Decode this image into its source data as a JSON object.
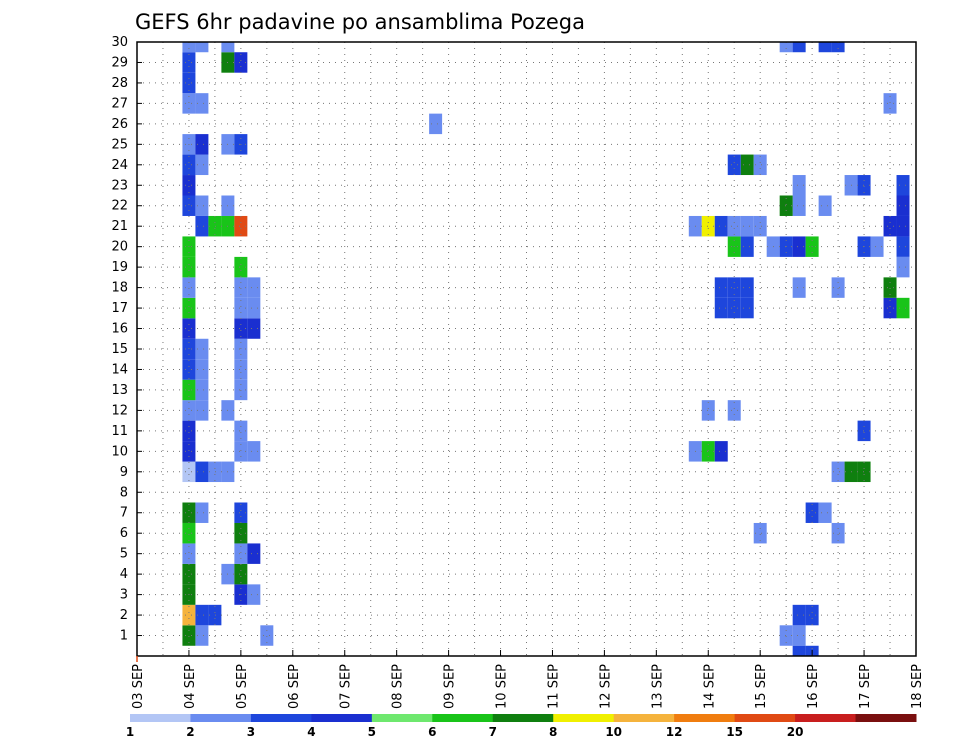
{
  "chart_data": {
    "type": "heatmap",
    "title": "GEFS 6hr padavine po ansamblima Pozega",
    "xlabel": "",
    "ylabel": "",
    "x_tick_labels": [
      "03 SEP",
      "04 SEP",
      "05 SEP",
      "06 SEP",
      "07 SEP",
      "08 SEP",
      "09 SEP",
      "10 SEP",
      "11 SEP",
      "12 SEP",
      "13 SEP",
      "14 SEP",
      "15 SEP",
      "16 SEP",
      "17 SEP",
      "18 SEP"
    ],
    "y_tick_labels": [
      "1",
      "2",
      "3",
      "4",
      "5",
      "6",
      "7",
      "8",
      "9",
      "10",
      "11",
      "12",
      "13",
      "14",
      "15",
      "16",
      "17",
      "18",
      "19",
      "20",
      "21",
      "22",
      "23",
      "24",
      "25",
      "26",
      "27",
      "28",
      "29",
      "30"
    ],
    "x_range_days": [
      3,
      18
    ],
    "y_range": [
      0,
      30
    ],
    "grid": true,
    "colorbar": {
      "levels": [
        "1",
        "2",
        "3",
        "4",
        "5",
        "6",
        "7",
        "8",
        "10",
        "12",
        "15",
        "20"
      ],
      "colors": [
        "#b3c6f5",
        "#6a8cf0",
        "#1e46dc",
        "#1a2fd0",
        "#6ee86e",
        "#19c419",
        "#0f7f0f",
        "#f0f000",
        "#f5b33c",
        "#f07d0f",
        "#e04a14",
        "#c81e1e",
        "#7a0f0f"
      ]
    },
    "cells": [
      [
        4.0,
        1,
        6
      ],
      [
        4.0,
        2,
        8
      ],
      [
        4.0,
        3,
        6
      ],
      [
        4.0,
        4,
        6
      ],
      [
        4.0,
        5,
        1
      ],
      [
        4.0,
        6,
        5
      ],
      [
        4.0,
        7,
        6
      ],
      [
        4.25,
        1,
        1
      ],
      [
        4.25,
        2,
        2
      ],
      [
        4.5,
        2,
        2
      ],
      [
        4.0,
        9,
        0
      ],
      [
        4.25,
        9,
        2
      ],
      [
        4.5,
        9,
        1
      ],
      [
        4.75,
        9,
        1
      ],
      [
        4.0,
        10,
        3
      ],
      [
        4.0,
        11,
        3
      ],
      [
        4.0,
        12,
        1
      ],
      [
        4.25,
        12,
        1
      ],
      [
        4.0,
        13,
        5
      ],
      [
        4.25,
        13,
        1
      ],
      [
        4.0,
        14,
        2
      ],
      [
        4.25,
        14,
        1
      ],
      [
        4.0,
        15,
        2
      ],
      [
        4.25,
        15,
        1
      ],
      [
        4.0,
        16,
        3
      ],
      [
        4.0,
        17,
        5
      ],
      [
        4.0,
        18,
        1
      ],
      [
        4.0,
        19,
        5
      ],
      [
        4.0,
        20,
        5
      ],
      [
        4.25,
        21,
        2
      ],
      [
        4.5,
        21,
        5
      ],
      [
        4.75,
        21,
        5
      ],
      [
        5.0,
        21,
        10
      ],
      [
        4.0,
        22,
        2
      ],
      [
        4.25,
        22,
        1
      ],
      [
        4.75,
        22,
        1
      ],
      [
        4.0,
        23,
        3
      ],
      [
        4.0,
        24,
        2
      ],
      [
        4.25,
        24,
        1
      ],
      [
        4.0,
        25,
        1
      ],
      [
        4.25,
        25,
        3
      ],
      [
        4.75,
        25,
        1
      ],
      [
        5.0,
        25,
        2
      ],
      [
        4.0,
        27,
        1
      ],
      [
        4.25,
        27,
        1
      ],
      [
        4.0,
        28,
        2
      ],
      [
        4.0,
        29,
        2
      ],
      [
        4.75,
        29,
        6
      ],
      [
        5.0,
        29,
        3
      ],
      [
        4.0,
        30,
        1
      ],
      [
        4.25,
        30,
        1
      ],
      [
        4.75,
        30,
        1
      ],
      [
        4.25,
        7,
        1
      ],
      [
        5.0,
        7,
        2
      ],
      [
        4.75,
        12,
        1
      ],
      [
        4.75,
        4,
        1
      ],
      [
        5.0,
        3,
        3
      ],
      [
        5.25,
        3,
        1
      ],
      [
        5.0,
        4,
        6
      ],
      [
        5.0,
        5,
        1
      ],
      [
        5.25,
        5,
        3
      ],
      [
        5.0,
        6,
        6
      ],
      [
        5.0,
        10,
        1
      ],
      [
        5.25,
        10,
        1
      ],
      [
        5.0,
        11,
        1
      ],
      [
        5.0,
        13,
        1
      ],
      [
        5.0,
        14,
        1
      ],
      [
        5.0,
        15,
        1
      ],
      [
        5.0,
        16,
        3
      ],
      [
        5.25,
        16,
        3
      ],
      [
        5.0,
        17,
        1
      ],
      [
        5.25,
        17,
        1
      ],
      [
        5.0,
        18,
        1
      ],
      [
        5.25,
        18,
        1
      ],
      [
        5.0,
        19,
        5
      ],
      [
        5.5,
        1,
        1
      ],
      [
        8.75,
        26,
        1
      ],
      [
        13.75,
        10,
        1
      ],
      [
        14.0,
        10,
        5
      ],
      [
        14.25,
        10,
        3
      ],
      [
        14.0,
        12,
        1
      ],
      [
        14.5,
        12,
        1
      ],
      [
        14.25,
        17,
        2
      ],
      [
        14.5,
        17,
        2
      ],
      [
        14.75,
        17,
        2
      ],
      [
        14.25,
        18,
        2
      ],
      [
        14.5,
        18,
        2
      ],
      [
        14.75,
        18,
        2
      ],
      [
        14.5,
        20,
        5
      ],
      [
        14.75,
        20,
        2
      ],
      [
        14.75,
        24,
        6
      ],
      [
        14.5,
        24,
        2
      ],
      [
        15.0,
        24,
        1
      ],
      [
        13.75,
        21,
        1
      ],
      [
        14.0,
        21,
        7
      ],
      [
        14.25,
        21,
        2
      ],
      [
        14.5,
        21,
        1
      ],
      [
        14.75,
        21,
        1
      ],
      [
        15.0,
        21,
        1
      ],
      [
        15.0,
        6,
        1
      ],
      [
        15.25,
        20,
        1
      ],
      [
        15.5,
        20,
        2
      ],
      [
        15.75,
        20,
        3
      ],
      [
        16.0,
        20,
        5
      ],
      [
        15.5,
        1,
        1
      ],
      [
        15.75,
        1,
        1
      ],
      [
        15.75,
        0,
        2
      ],
      [
        16.0,
        0,
        2
      ],
      [
        15.75,
        2,
        2
      ],
      [
        16.0,
        2,
        2
      ],
      [
        15.5,
        30,
        1
      ],
      [
        15.75,
        30,
        2
      ],
      [
        16.25,
        30,
        2
      ],
      [
        16.5,
        30,
        2
      ],
      [
        15.75,
        18,
        1
      ],
      [
        15.75,
        22,
        1
      ],
      [
        15.75,
        23,
        1
      ],
      [
        15.5,
        22,
        6
      ],
      [
        16.25,
        22,
        1
      ],
      [
        16.0,
        7,
        2
      ],
      [
        16.25,
        7,
        1
      ],
      [
        16.5,
        6,
        1
      ],
      [
        16.5,
        9,
        1
      ],
      [
        16.75,
        9,
        6
      ],
      [
        17.0,
        9,
        6
      ],
      [
        16.5,
        18,
        1
      ],
      [
        16.75,
        23,
        1
      ],
      [
        17.0,
        23,
        2
      ],
      [
        17.0,
        11,
        2
      ],
      [
        17.0,
        20,
        2
      ],
      [
        17.25,
        20,
        1
      ],
      [
        17.5,
        27,
        1
      ],
      [
        17.5,
        21,
        3
      ],
      [
        17.5,
        17,
        3
      ],
      [
        17.75,
        17,
        5
      ],
      [
        17.5,
        18,
        6
      ],
      [
        17.75,
        20,
        2
      ],
      [
        17.75,
        21,
        3
      ],
      [
        17.75,
        22,
        3
      ],
      [
        17.75,
        23,
        2
      ],
      [
        17.75,
        19,
        1
      ]
    ]
  }
}
